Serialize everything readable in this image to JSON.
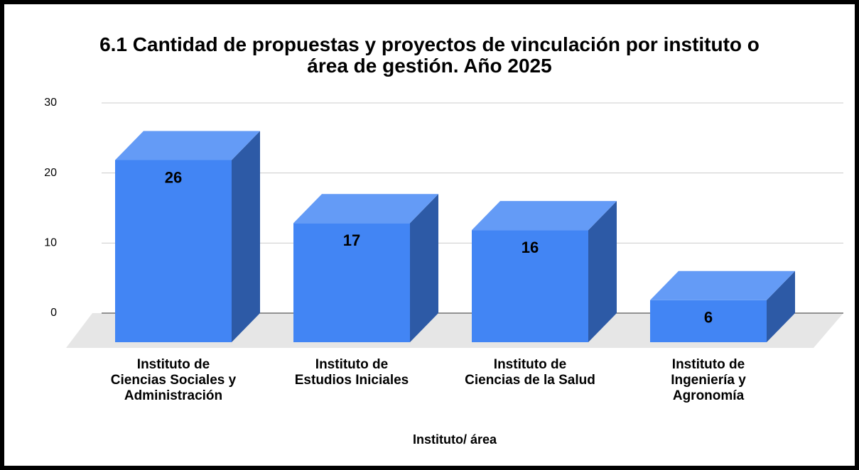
{
  "chart_data": {
    "type": "bar3d",
    "title": "6.1 Cantidad de propuestas y proyectos de vinculación por instituto o\nárea de gestión. Año 2025",
    "x_label": "Instituto/ área",
    "categories": [
      "Instituto de\nCiencias Sociales y\nAdministración",
      "Instituto de\nEstudios Iniciales",
      "Instituto de\nCiencias de la Salud",
      "Instituto de\nIngeniería y\nAgronomía"
    ],
    "values": [
      26,
      17,
      16,
      6
    ],
    "color": "#4285f4",
    "ylim": [
      0,
      30
    ],
    "yticks": [
      0,
      10,
      20,
      30
    ],
    "grid": true
  }
}
